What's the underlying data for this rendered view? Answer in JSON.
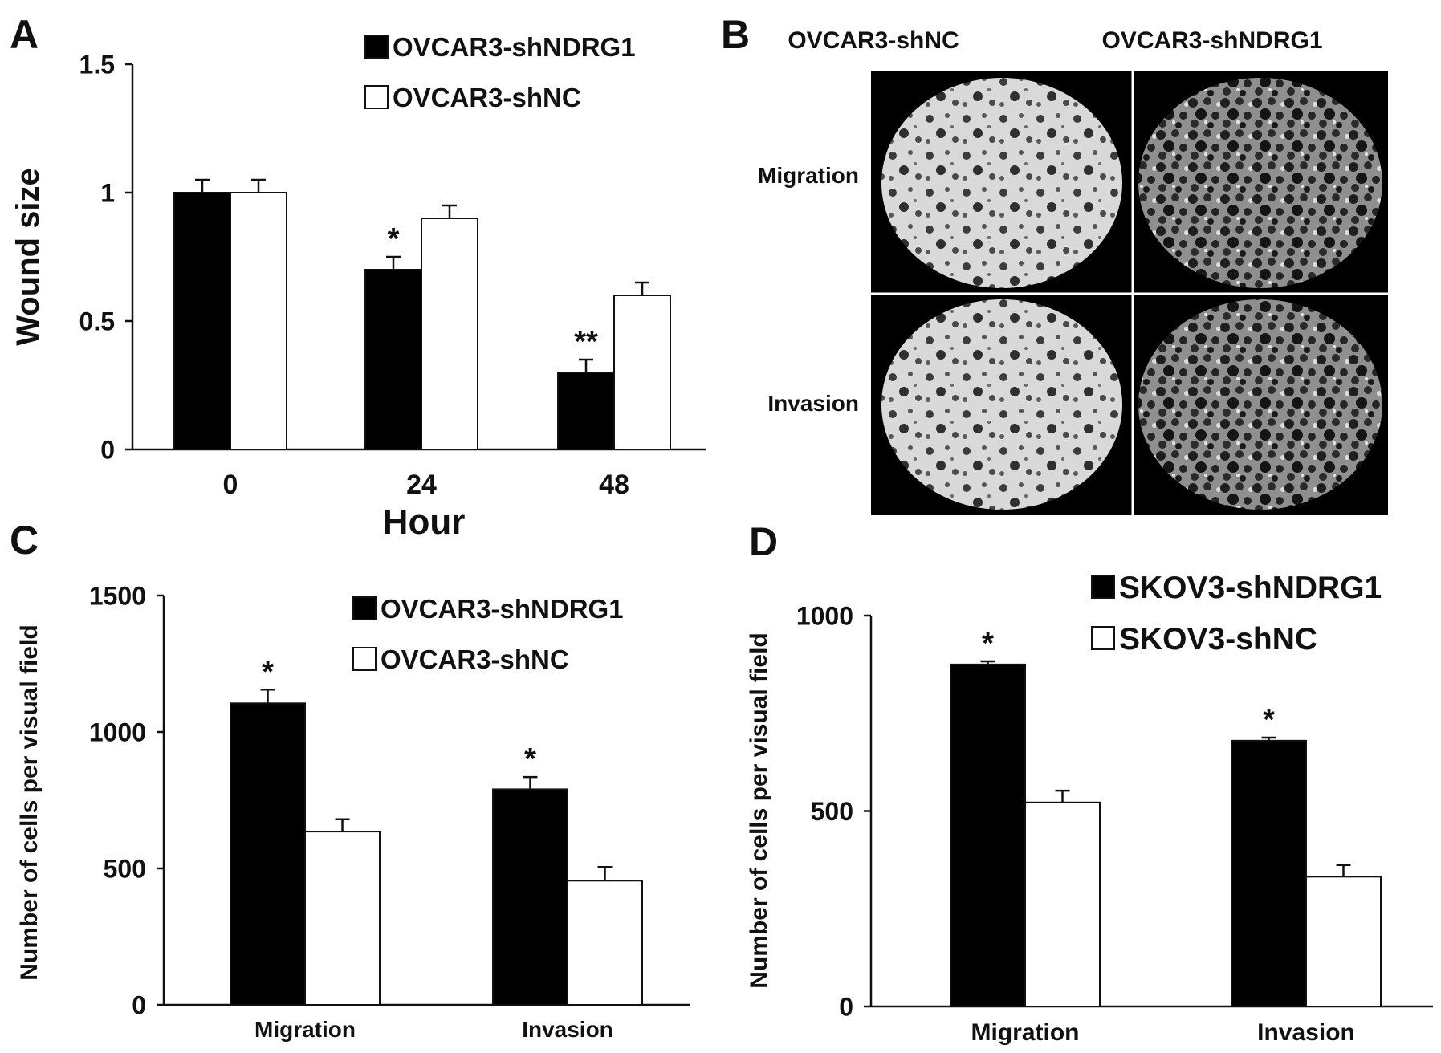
{
  "figure": {
    "panel_letters": [
      "A",
      "B",
      "C",
      "D"
    ]
  },
  "chart_data": [
    {
      "panel": "A",
      "type": "bar",
      "xlabel": "Hour",
      "ylabel": "Wound size",
      "categories": [
        "0",
        "24",
        "48"
      ],
      "ylim": [
        0,
        1.5
      ],
      "yticks": [
        "0",
        "0.5",
        "1",
        "1.5"
      ],
      "grid": false,
      "legend_position": "top-right",
      "series": [
        {
          "name": "OVCAR3-shNDRG1",
          "fill": "#000000",
          "values": [
            1.0,
            0.7,
            0.3
          ],
          "errors": [
            0.05,
            0.05,
            0.05
          ]
        },
        {
          "name": "OVCAR3-shNC",
          "fill": "#ffffff",
          "values": [
            1.0,
            0.9,
            0.6
          ],
          "errors": [
            0.05,
            0.05,
            0.05
          ]
        }
      ],
      "annotations": [
        {
          "category": 1,
          "series": 0,
          "text": "*"
        },
        {
          "category": 2,
          "series": 0,
          "text": "**"
        }
      ]
    },
    {
      "panel": "C",
      "type": "bar",
      "xlabel": "",
      "ylabel": "Number of cells per visual field",
      "categories": [
        "Migration",
        "Invasion"
      ],
      "ylim": [
        0,
        1500
      ],
      "yticks": [
        "0",
        "500",
        "1000",
        "1500"
      ],
      "grid": false,
      "legend_position": "top-right",
      "series": [
        {
          "name": "OVCAR3-shNDRG1",
          "fill": "#000000",
          "values": [
            1105,
            790
          ],
          "errors": [
            50,
            45
          ]
        },
        {
          "name": "OVCAR3-shNC",
          "fill": "#ffffff",
          "values": [
            635,
            455
          ],
          "errors": [
            45,
            50
          ]
        }
      ],
      "annotations": [
        {
          "category": 0,
          "series": 0,
          "text": "*"
        },
        {
          "category": 1,
          "series": 0,
          "text": "*"
        }
      ]
    },
    {
      "panel": "D",
      "type": "bar",
      "xlabel": "",
      "ylabel": "Number of cells per visual field",
      "categories": [
        "Migration",
        "Invasion"
      ],
      "ylim": [
        0,
        1000
      ],
      "yticks": [
        "0",
        "500",
        "1000"
      ],
      "grid": false,
      "legend_position": "top-right",
      "series": [
        {
          "name": "SKOV3-shNDRG1",
          "fill": "#000000",
          "values": [
            875,
            680
          ],
          "errors": [
            8,
            8
          ]
        },
        {
          "name": "SKOV3-shNC",
          "fill": "#ffffff",
          "values": [
            522,
            332
          ],
          "errors": [
            30,
            30
          ]
        }
      ],
      "annotations": [
        {
          "category": 0,
          "series": 0,
          "text": "*"
        },
        {
          "category": 1,
          "series": 0,
          "text": "*"
        }
      ]
    }
  ],
  "micrographs": {
    "column_labels": [
      "OVCAR3-shNC",
      "OVCAR3-shNDRG1"
    ],
    "row_labels": [
      "Migration",
      "Invasion"
    ]
  }
}
